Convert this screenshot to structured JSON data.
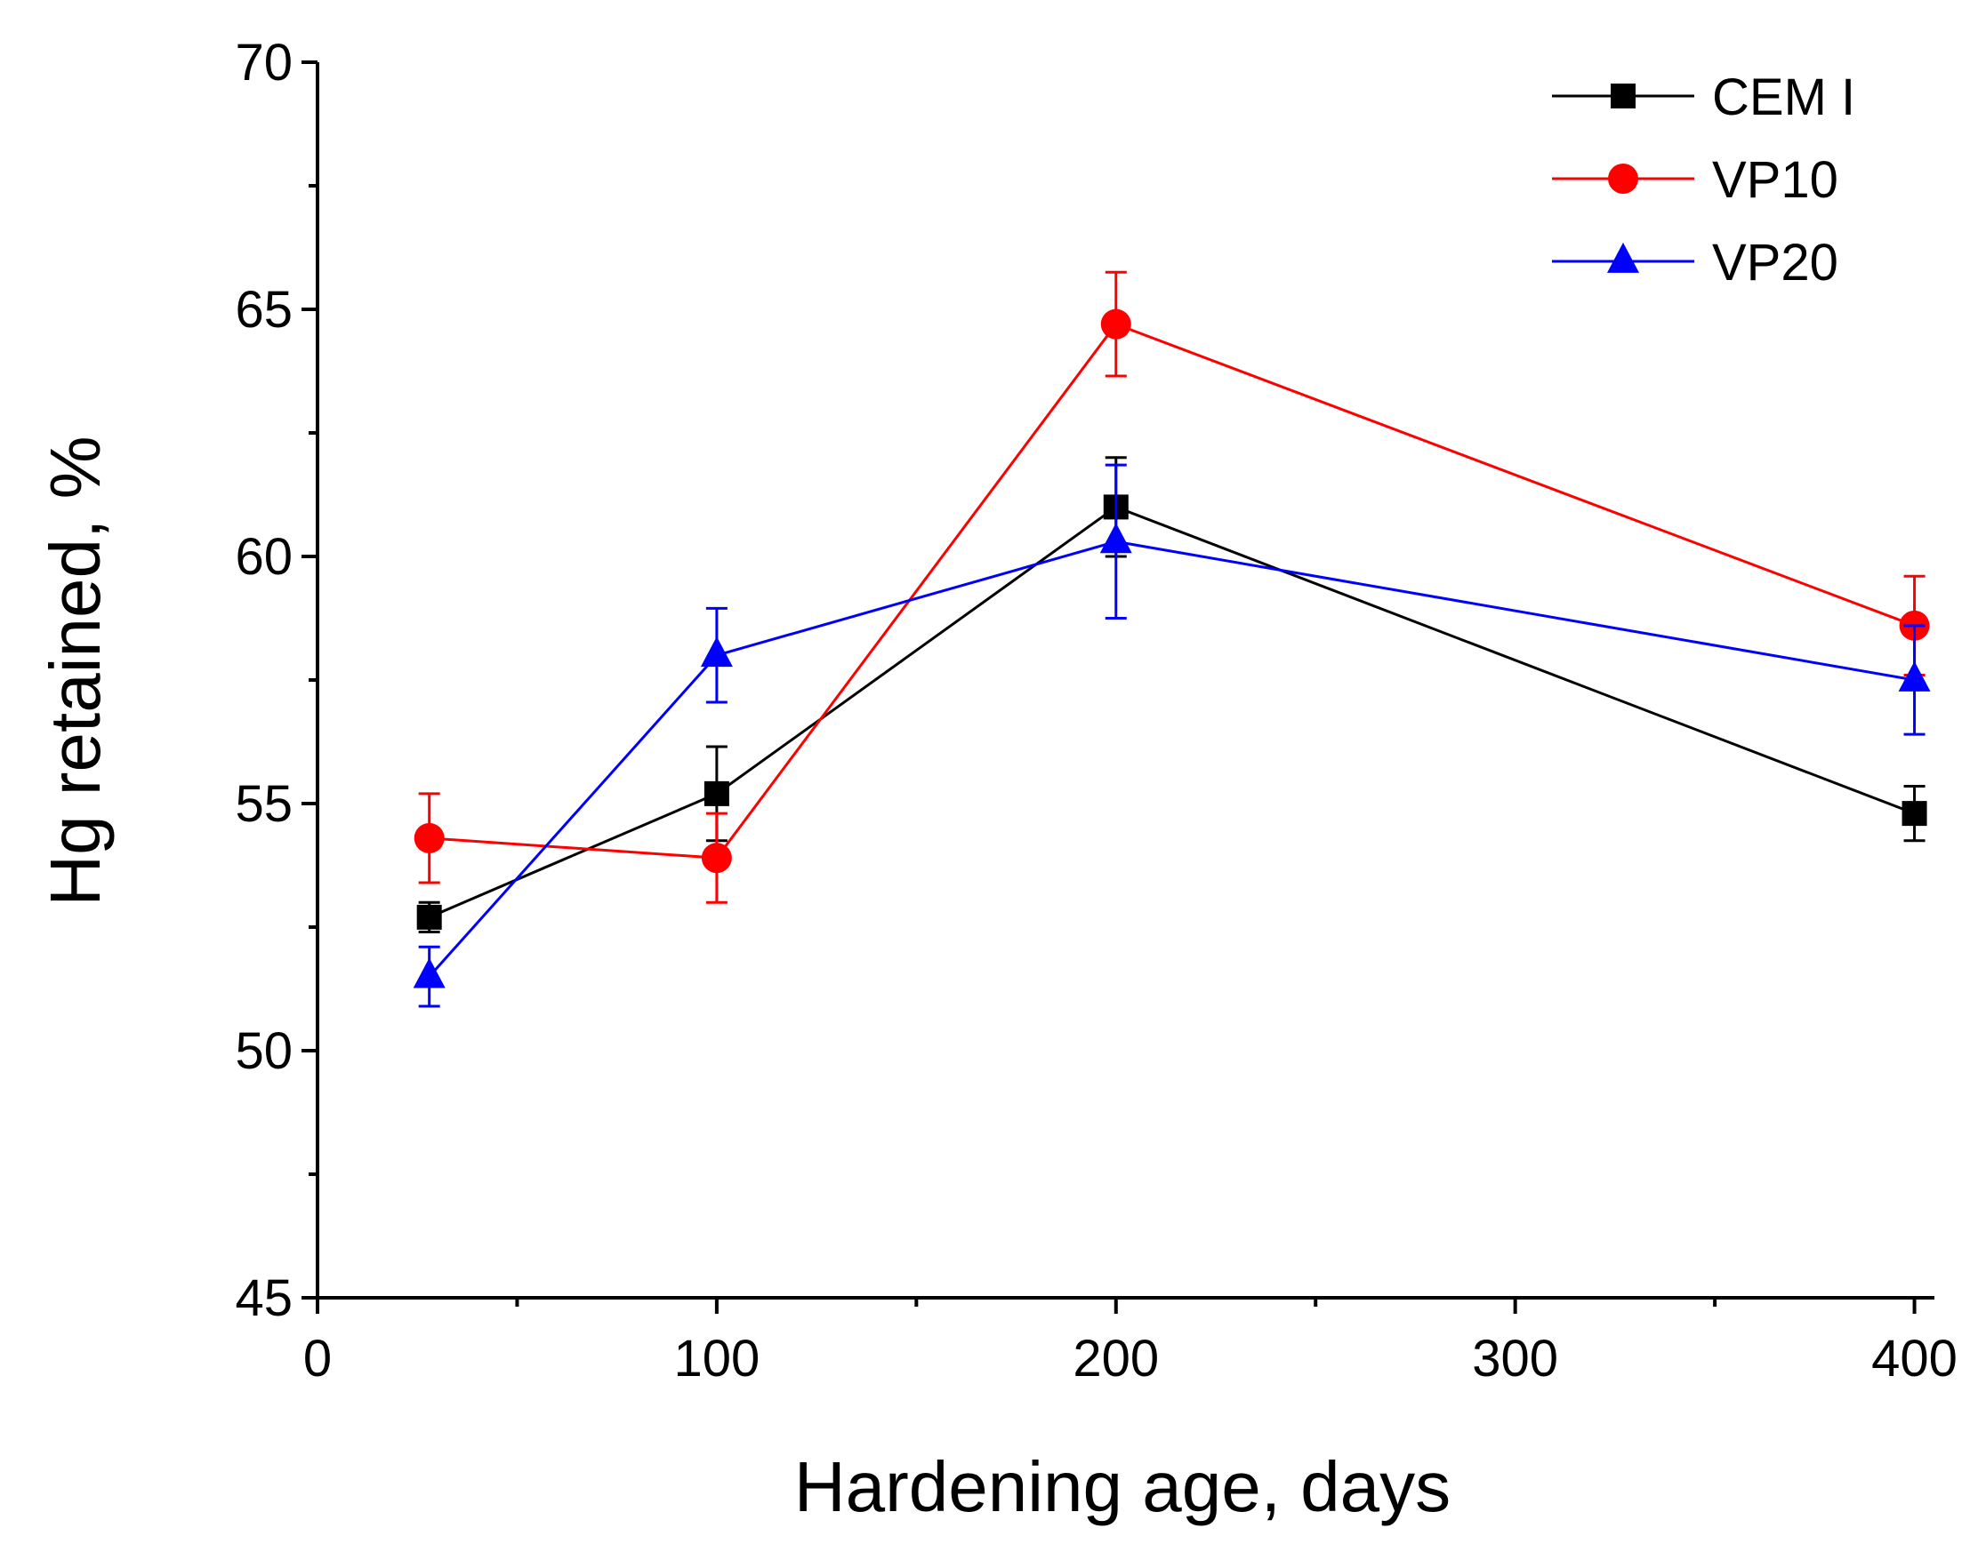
{
  "chart_data": {
    "type": "line",
    "title": "",
    "xlabel": "Hardening age, days",
    "ylabel": "Hg retained, %",
    "xlim": [
      0,
      405
    ],
    "ylim": [
      45,
      70
    ],
    "x_ticks": [
      0,
      100,
      200,
      300,
      400
    ],
    "x_tick_labels": [
      "0",
      "100",
      "200",
      "300",
      "400"
    ],
    "x_minor_ticks": [
      50,
      150,
      250,
      350
    ],
    "y_ticks": [
      45,
      50,
      55,
      60,
      65,
      70
    ],
    "y_tick_labels": [
      "45",
      "50",
      "55",
      "60",
      "65",
      "70"
    ],
    "y_minor_ticks": [
      47.5,
      52.5,
      57.5,
      62.5,
      67.5
    ],
    "grid": false,
    "legend_position": "top-right",
    "series": [
      {
        "name": "CEM I",
        "color": "#000000",
        "marker": "square",
        "points": [
          {
            "x": 28,
            "y": 52.7,
            "err": 0.3
          },
          {
            "x": 100,
            "y": 55.2,
            "err": 0.95
          },
          {
            "x": 200,
            "y": 61.0,
            "err": 1.0
          },
          {
            "x": 400,
            "y": 54.8,
            "err": 0.55
          }
        ]
      },
      {
        "name": "VP10",
        "color": "#ff0000",
        "marker": "circle",
        "points": [
          {
            "x": 28,
            "y": 54.3,
            "err": 0.9
          },
          {
            "x": 100,
            "y": 53.9,
            "err": 0.9
          },
          {
            "x": 200,
            "y": 64.7,
            "err": 1.05
          },
          {
            "x": 400,
            "y": 58.6,
            "err": 1.0
          }
        ]
      },
      {
        "name": "VP20",
        "color": "#0000ff",
        "marker": "triangle",
        "points": [
          {
            "x": 28,
            "y": 51.5,
            "err": 0.6
          },
          {
            "x": 100,
            "y": 58.0,
            "err": 0.95
          },
          {
            "x": 200,
            "y": 60.3,
            "err": 1.55
          },
          {
            "x": 400,
            "y": 57.5,
            "err": 1.1
          }
        ]
      }
    ]
  }
}
